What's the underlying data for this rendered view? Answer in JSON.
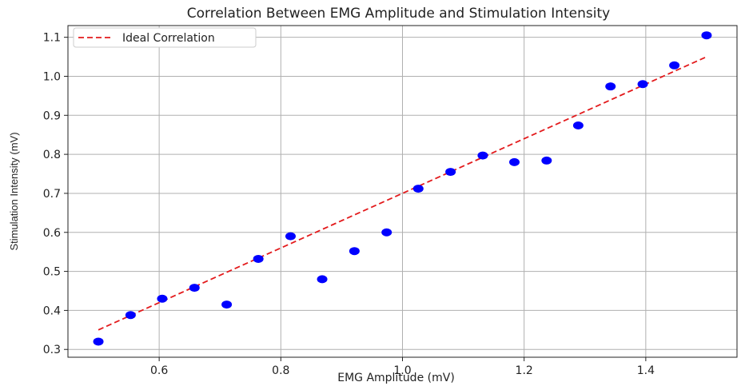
{
  "chart_data": {
    "type": "scatter",
    "title": "Correlation Between EMG Amplitude and Stimulation Intensity",
    "xlabel": "EMG Amplitude (mV)",
    "ylabel": "Stimulation Intensity (mV)",
    "xlim": [
      0.45,
      1.55
    ],
    "ylim": [
      0.28,
      1.13
    ],
    "xticks": [
      0.6,
      0.8,
      1.0,
      1.2,
      1.4
    ],
    "xtick_labels": [
      "0.6",
      "0.8",
      "1.0",
      "1.2",
      "1.4"
    ],
    "yticks": [
      0.3,
      0.4,
      0.5,
      0.6,
      0.7,
      0.8,
      0.9,
      1.0,
      1.1
    ],
    "ytick_labels": [
      "0.3",
      "0.4",
      "0.5",
      "0.6",
      "0.7",
      "0.8",
      "0.9",
      "1.0",
      "1.1"
    ],
    "grid": true,
    "legend_position": "top-left",
    "series": [
      {
        "kind": "scatter",
        "color": "#0000ff",
        "x": [
          0.5,
          0.553,
          0.605,
          0.658,
          0.711,
          0.763,
          0.816,
          0.868,
          0.921,
          0.974,
          1.026,
          1.079,
          1.132,
          1.184,
          1.237,
          1.289,
          1.342,
          1.395,
          1.447,
          1.5
        ],
        "y": [
          0.32,
          0.388,
          0.43,
          0.458,
          0.415,
          0.532,
          0.59,
          0.48,
          0.552,
          0.6,
          0.712,
          0.755,
          0.797,
          0.78,
          0.784,
          0.874,
          0.974,
          0.98,
          1.028,
          1.105
        ]
      },
      {
        "name": "Ideal Correlation",
        "kind": "line",
        "style": "dashed",
        "color": "#e31a1c",
        "x": [
          0.5,
          1.5
        ],
        "y": [
          0.35,
          1.05
        ]
      }
    ]
  }
}
